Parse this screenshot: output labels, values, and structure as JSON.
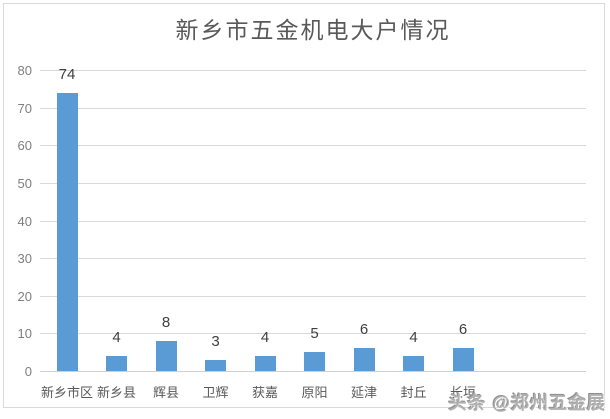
{
  "title": "新乡市五金机电大户情况",
  "watermark": "头条 @郑州五金展",
  "chart_data": {
    "type": "bar",
    "title": "新乡市五金机电大户情况",
    "categories": [
      "新乡市区",
      "新乡县",
      "辉县",
      "卫辉",
      "获嘉",
      "原阳",
      "延津",
      "封丘",
      "长垣"
    ],
    "values": [
      74,
      4,
      8,
      3,
      4,
      5,
      6,
      4,
      6
    ],
    "xlabel": "",
    "ylabel": "",
    "ylim": [
      0,
      80
    ],
    "yticks": [
      0,
      10,
      20,
      30,
      40,
      50,
      60,
      70,
      80
    ],
    "grid": true,
    "legend": false,
    "data_labels": true,
    "colors": {
      "bar": "#5B9BD5",
      "gridline": "#D9D9D9",
      "axis_line": "#CFCFCF",
      "y_label": "#7F7F7F",
      "category_label": "#595959",
      "value_label": "#404040",
      "title": "#595959",
      "frame_border": "#D9D9D9",
      "watermark": "#B0B0B0"
    }
  }
}
